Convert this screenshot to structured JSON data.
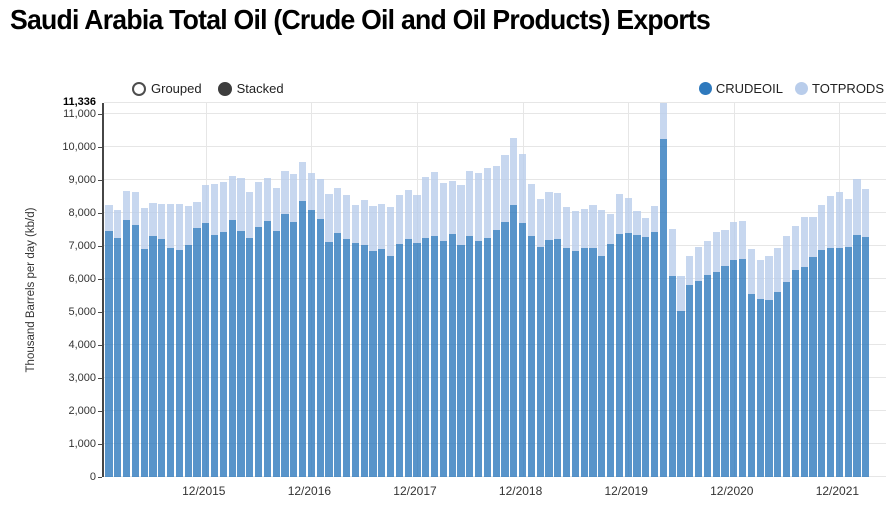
{
  "title": "Saudi Arabia Total Oil (Crude Oil and Oil Products) Exports",
  "controls": {
    "grouped_label": "Grouped",
    "stacked_label": "Stacked",
    "selected_mode": "Stacked"
  },
  "y_axis": {
    "title": "Thousand Barrels per day (kb/d)",
    "ticks": [
      "0",
      "1,000",
      "2,000",
      "3,000",
      "4,000",
      "5,000",
      "6,000",
      "7,000",
      "8,000",
      "9,000",
      "10,000",
      "11,000"
    ],
    "max_label": "11,336"
  },
  "x_axis": {
    "ticks": [
      {
        "i": 11,
        "label": "12/2015"
      },
      {
        "i": 23,
        "label": "12/2016"
      },
      {
        "i": 35,
        "label": "12/2017"
      },
      {
        "i": 47,
        "label": "12/2018"
      },
      {
        "i": 59,
        "label": "12/2019"
      },
      {
        "i": 71,
        "label": "12/2020"
      },
      {
        "i": 83,
        "label": "12/2021"
      }
    ]
  },
  "chart_data": {
    "type": "bar",
    "mode": "stacked",
    "title": "Saudi Arabia Total Oil (Crude Oil and Oil Products) Exports",
    "ylabel": "Thousand Barrels per day (kb/d)",
    "ymax": 11336,
    "grid": true,
    "legend_position": "top-right",
    "months": [
      "1/2015",
      "2/2015",
      "3/2015",
      "4/2015",
      "5/2015",
      "6/2015",
      "7/2015",
      "8/2015",
      "9/2015",
      "10/2015",
      "11/2015",
      "12/2015",
      "1/2016",
      "2/2016",
      "3/2016",
      "4/2016",
      "5/2016",
      "6/2016",
      "7/2016",
      "8/2016",
      "9/2016",
      "10/2016",
      "11/2016",
      "12/2016",
      "1/2017",
      "2/2017",
      "3/2017",
      "4/2017",
      "5/2017",
      "6/2017",
      "7/2017",
      "8/2017",
      "9/2017",
      "10/2017",
      "11/2017",
      "12/2017",
      "1/2018",
      "2/2018",
      "3/2018",
      "4/2018",
      "5/2018",
      "6/2018",
      "7/2018",
      "8/2018",
      "9/2018",
      "10/2018",
      "11/2018",
      "12/2018",
      "1/2019",
      "2/2019",
      "3/2019",
      "4/2019",
      "5/2019",
      "6/2019",
      "7/2019",
      "8/2019",
      "9/2019",
      "10/2019",
      "11/2019",
      "12/2019",
      "1/2020",
      "2/2020",
      "3/2020",
      "4/2020",
      "5/2020",
      "6/2020",
      "7/2020",
      "8/2020",
      "9/2020",
      "10/2020",
      "11/2020",
      "12/2020",
      "1/2021",
      "2/2021",
      "3/2021",
      "4/2021",
      "5/2021",
      "6/2021",
      "7/2021",
      "8/2021",
      "9/2021",
      "10/2021",
      "11/2021",
      "12/2021",
      "1/2022",
      "2/2022",
      "3/2022"
    ],
    "series": [
      {
        "name": "CRUDEOIL",
        "color": "#2E79BD",
        "values": [
          7450,
          7230,
          7790,
          7640,
          6910,
          7310,
          7210,
          6950,
          6880,
          7030,
          7560,
          7690,
          7350,
          7430,
          7790,
          7470,
          7250,
          7590,
          7760,
          7470,
          7960,
          7730,
          8360,
          8100,
          7830,
          7110,
          7410,
          7210,
          7080,
          7030,
          6860,
          6900,
          6710,
          7060,
          7220,
          7100,
          7250,
          7320,
          7150,
          7370,
          7030,
          7300,
          7150,
          7250,
          7500,
          7720,
          8250,
          7700,
          7300,
          6980,
          7170,
          7200,
          6950,
          6850,
          6930,
          6930,
          6710,
          7050,
          7370,
          7390,
          7340,
          7290,
          7440,
          10237,
          6090,
          5020,
          5830,
          5940,
          6120,
          6200,
          6400,
          6570,
          6620,
          5560,
          5410,
          5360,
          5610,
          5920,
          6280,
          6380,
          6670,
          6870,
          6930,
          6950,
          6980,
          7330,
          7280
        ]
      },
      {
        "name": "TOTPRODS",
        "color": "#B9CDEB",
        "values": [
          790,
          860,
          880,
          990,
          1250,
          1010,
          1070,
          1330,
          1400,
          1190,
          780,
          1160,
          1530,
          1520,
          1330,
          1580,
          1390,
          1340,
          1300,
          1290,
          1310,
          1470,
          1200,
          1100,
          1200,
          1460,
          1340,
          1330,
          1170,
          1360,
          1370,
          1370,
          1460,
          1500,
          1470,
          1450,
          1850,
          1930,
          1750,
          1610,
          1820,
          1970,
          2050,
          2130,
          1930,
          2030,
          2020,
          2100,
          1570,
          1450,
          1460,
          1400,
          1220,
          1200,
          1200,
          1320,
          1390,
          920,
          1210,
          1070,
          730,
          560,
          780,
          1099,
          1420,
          1070,
          870,
          1040,
          1020,
          1240,
          1100,
          1150,
          1130,
          1360,
          1160,
          1330,
          1320,
          1390,
          1330,
          1510,
          1220,
          1380,
          1580,
          1690,
          1460,
          1700,
          1450
        ]
      }
    ]
  }
}
